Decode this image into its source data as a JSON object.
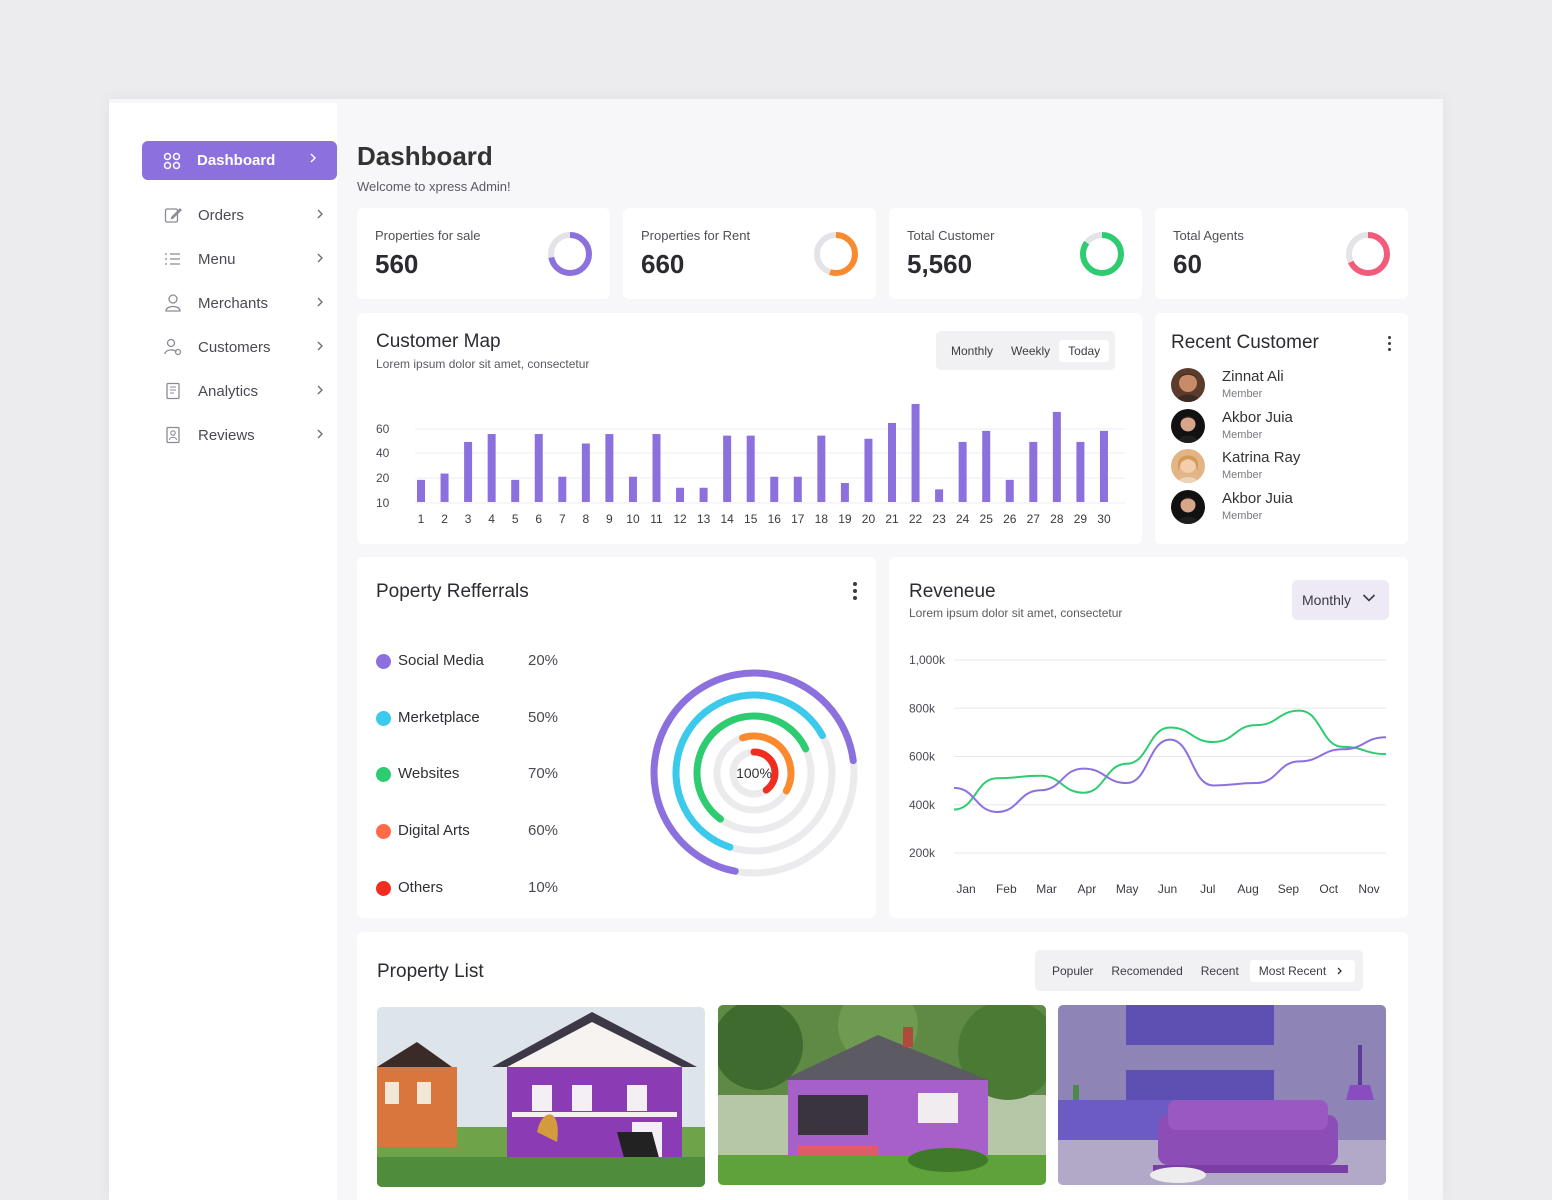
{
  "sidebar": {
    "active": {
      "label": "Dashboard",
      "icon": "grid-icon"
    },
    "items": [
      {
        "label": "Orders",
        "icon": "edit-icon"
      },
      {
        "label": "Menu",
        "icon": "list-icon"
      },
      {
        "label": "Merchants",
        "icon": "user-icon"
      },
      {
        "label": "Customers",
        "icon": "users-icon"
      },
      {
        "label": "Analytics",
        "icon": "document-icon"
      },
      {
        "label": "Reviews",
        "icon": "review-icon"
      }
    ]
  },
  "header": {
    "title": "Dashboard",
    "subtitle": "Welcome to xpress Admin!"
  },
  "stats": [
    {
      "label": "Properties for sale",
      "value": "560",
      "color": "#8C71DE",
      "fraction": 0.72
    },
    {
      "label": "Properties for Rent",
      "value": "660",
      "color": "#FB8A2E",
      "fraction": 0.55
    },
    {
      "label": "Total Customer",
      "value": "5,560",
      "color": "#2ECC71",
      "fraction": 0.85
    },
    {
      "label": "Total Agents",
      "value": "60",
      "color": "#F25C7A",
      "fraction": 0.68
    }
  ],
  "customer_map": {
    "title": "Customer Map",
    "subtitle": "Lorem ipsum dolor sit amet, consectetur",
    "tabs": [
      "Monthly",
      "Weekly",
      "Today"
    ],
    "active_tab": "Today"
  },
  "recent_customer": {
    "title": "Recent Customer",
    "items": [
      {
        "name": "Zinnat Ali",
        "role": "Member"
      },
      {
        "name": "Akbor Juia",
        "role": "Member"
      },
      {
        "name": "Katrina Ray",
        "role": "Member"
      },
      {
        "name": "Akbor Juia",
        "role": "Member"
      }
    ]
  },
  "referrals": {
    "title": "Poperty Refferrals",
    "center_label": "100%",
    "items": [
      {
        "label": "Social Media",
        "pct": "20%",
        "color": "#8C71DE"
      },
      {
        "label": "Merketplace",
        "pct": "50%",
        "color": "#3BC9EC"
      },
      {
        "label": "Websites",
        "pct": "70%",
        "color": "#2ECC71"
      },
      {
        "label": "Digital Arts",
        "pct": "60%",
        "color": "#FF6B47"
      },
      {
        "label": "Others",
        "pct": "10%",
        "color": "#F02D1F"
      }
    ]
  },
  "revenue": {
    "title": "Reveneue",
    "subtitle": "Lorem ipsum dolor sit amet, consectetur",
    "dropdown": "Monthly"
  },
  "property_list": {
    "title": "Property List",
    "tabs": [
      "Populer",
      "Recomended",
      "Recent",
      "Most Recent"
    ],
    "active_tab": "Most Recent"
  },
  "chart_data": [
    {
      "type": "bar",
      "title": "Customer Map",
      "categories": [
        "1",
        "2",
        "3",
        "4",
        "5",
        "6",
        "7",
        "8",
        "9",
        "10",
        "11",
        "12",
        "13",
        "14",
        "15",
        "16",
        "17",
        "18",
        "19",
        "20",
        "21",
        "22",
        "23",
        "24",
        "25",
        "26",
        "27",
        "28",
        "29",
        "30"
      ],
      "values": [
        14,
        18,
        38,
        43,
        14,
        43,
        16,
        37,
        43,
        16,
        43,
        9,
        9,
        42,
        42,
        16,
        16,
        42,
        12,
        40,
        50,
        62,
        8,
        38,
        45,
        14,
        38,
        57,
        38,
        45
      ],
      "yticks": [
        "10",
        "20",
        "40",
        "60"
      ],
      "color": "#8C71DE"
    },
    {
      "type": "line",
      "title": "Reveneue",
      "categories": [
        "Jan",
        "Feb",
        "Mar",
        "Apr",
        "May",
        "Jun",
        "Jul",
        "Aug",
        "Sep",
        "Oct",
        "Nov"
      ],
      "yticks": [
        "200k",
        "400k",
        "600k",
        "800k",
        "1,000k"
      ],
      "ylim": [
        200,
        1000
      ],
      "series": [
        {
          "color": "#2ECC71",
          "values": [
            380,
            510,
            520,
            450,
            570,
            720,
            660,
            730,
            790,
            640,
            610
          ]
        },
        {
          "color": "#8C71DE",
          "values": [
            470,
            370,
            460,
            550,
            490,
            670,
            480,
            490,
            580,
            630,
            680
          ]
        }
      ]
    }
  ]
}
